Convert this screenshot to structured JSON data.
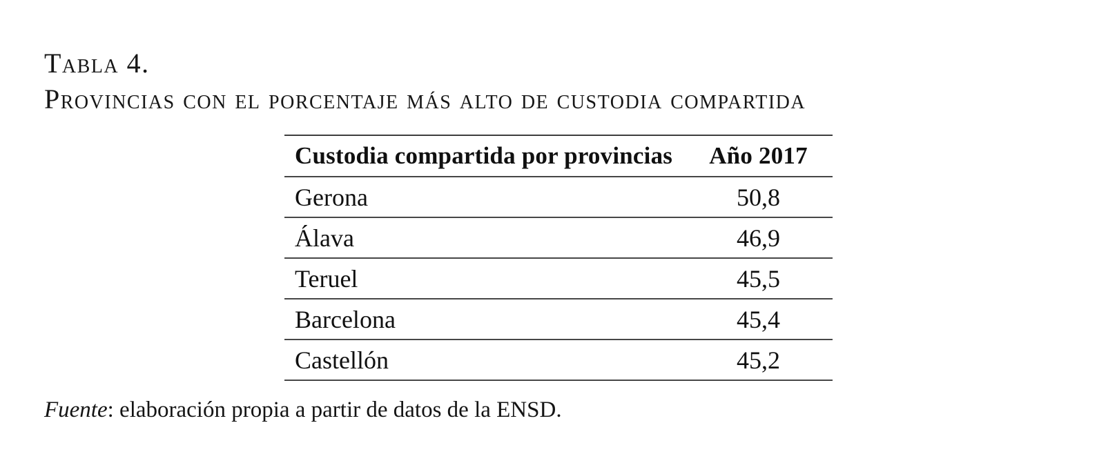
{
  "document": {
    "title": {
      "line1": "Tabla 4.",
      "line2": "Provincias con el porcentaje más alto de custodia compartida"
    },
    "table": {
      "columns": [
        "Custodia compartida por provincias",
        "Año 2017"
      ],
      "rows": [
        {
          "province": "Gerona",
          "value": "50,8"
        },
        {
          "province": "Álava",
          "value": "46,9"
        },
        {
          "province": "Teruel",
          "value": "45,5"
        },
        {
          "province": "Barcelona",
          "value": "45,4"
        },
        {
          "province": "Castellón",
          "value": "45,2"
        }
      ]
    },
    "source": {
      "prefix": "Fuente",
      "text": ": elaboración propia a partir de datos de la ENSD."
    }
  },
  "chart_data": {
    "type": "table",
    "title": "Tabla 4. Provincias con el porcentaje más alto de custodia compartida",
    "columns": [
      "Custodia compartida por provincias",
      "Año 2017"
    ],
    "categories": [
      "Gerona",
      "Álava",
      "Teruel",
      "Barcelona",
      "Castellón"
    ],
    "values": [
      50.8,
      46.9,
      45.5,
      45.4,
      45.2
    ],
    "source": "Fuente: elaboración propia a partir de datos de la ENSD."
  },
  "colors": {
    "background": "#ffffff",
    "text": "#141414",
    "rule": "#464646"
  }
}
